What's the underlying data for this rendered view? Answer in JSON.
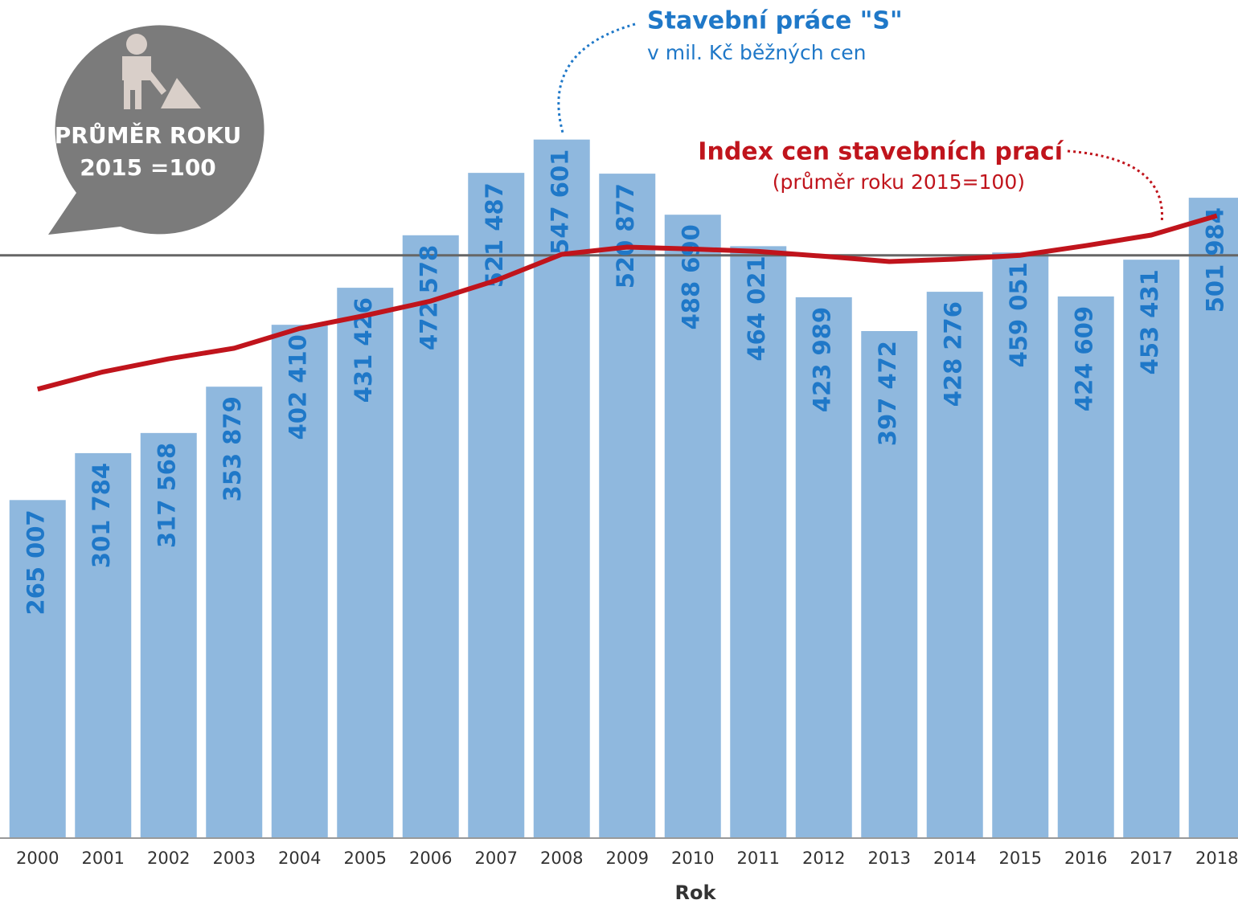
{
  "chart_data": {
    "type": "bar",
    "x_label": "Rok",
    "badge": [
      "PRŮMĚR ROKU",
      "2015 =100"
    ],
    "categories": [
      "2000",
      "2001",
      "2002",
      "2003",
      "2004",
      "2005",
      "2006",
      "2007",
      "2008",
      "2009",
      "2010",
      "2011",
      "2012",
      "2013",
      "2014",
      "2015",
      "2016",
      "2017",
      "2018"
    ],
    "series": [
      {
        "name": "Stavební práce \"S\"",
        "subtitle": "v mil. Kč běžných cen",
        "type": "bar",
        "color": "#8fb8de",
        "label_color": "#1f78c8",
        "values": [
          265007,
          301784,
          317568,
          353879,
          402410,
          431426,
          472578,
          521487,
          547601,
          520877,
          488690,
          464021,
          423989,
          397472,
          428276,
          459051,
          424609,
          453431,
          501984
        ],
        "value_labels": [
          "265 007",
          "301 784",
          "317 568",
          "353 879",
          "402 410",
          "431 426",
          "472 578",
          "521 487",
          "547 601",
          "520 877",
          "488 690",
          "464 021",
          "423 989",
          "397 472",
          "428 276",
          "459 051",
          "424 609",
          "453 431",
          "501 984"
        ]
      },
      {
        "name": "Index cen stavebních prací",
        "subtitle": "(průměr roku 2015=100)",
        "type": "line",
        "axis": "y2",
        "color": "#c0141c",
        "values": [
          72.2,
          75.8,
          78.5,
          80.7,
          84.8,
          87.5,
          90.5,
          94.8,
          100.2,
          101.7,
          101.3,
          100.8,
          99.8,
          98.7,
          99.2,
          100,
          102,
          104.2,
          108.2
        ]
      }
    ],
    "ylim": [
      0,
      657000
    ],
    "y2lim": [
      -21,
      153
    ],
    "reference_line": {
      "value": 100,
      "axis": "y2",
      "color": "#666666"
    }
  }
}
